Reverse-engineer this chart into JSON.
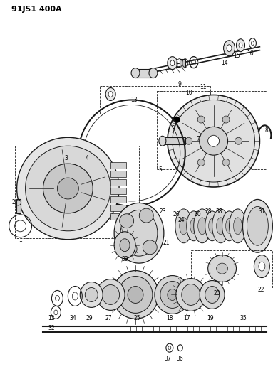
{
  "title": "91J51 400A",
  "bg_color": "#ffffff",
  "line_color": "#1a1a1a",
  "fig_width": 3.9,
  "fig_height": 5.33,
  "dpi": 100
}
